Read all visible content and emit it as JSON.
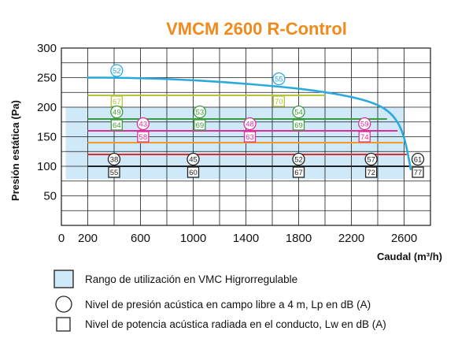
{
  "chart_data": {
    "type": "line",
    "title": "VMCM 2600 R-Control",
    "xlabel": "Caudal (m³/h)",
    "ylabel": "Presión estática (Pa)",
    "xlim": [
      0,
      2800
    ],
    "ylim": [
      0,
      300
    ],
    "x_ticks": [
      0,
      200,
      600,
      1000,
      1400,
      1800,
      2200,
      2600
    ],
    "y_ticks": [
      50,
      100,
      150,
      200,
      250,
      300
    ],
    "grid": true,
    "utilization_range": {
      "y_min": 78,
      "y_max": 200,
      "x_min": 200,
      "x_max": 2600
    },
    "curve": {
      "color": "#2aa9df",
      "points": [
        [
          200,
          250
        ],
        [
          400,
          250
        ],
        [
          800,
          248
        ],
        [
          1200,
          243
        ],
        [
          1600,
          236
        ],
        [
          1900,
          229
        ],
        [
          2200,
          218
        ],
        [
          2400,
          205
        ],
        [
          2500,
          190
        ],
        [
          2560,
          172
        ],
        [
          2600,
          150
        ],
        [
          2630,
          120
        ],
        [
          2650,
          95
        ]
      ]
    },
    "lines": [
      {
        "y": 220,
        "x_end": 2000,
        "color": "#b4c43c",
        "markers": [
          {
            "x": 420,
            "circle": null,
            "square": "67"
          },
          {
            "x": 1650,
            "circle": null,
            "square": "70"
          }
        ]
      },
      {
        "y": 180,
        "x_end": 2470,
        "color": "#3c9c3c",
        "markers": [
          {
            "x": 420,
            "circle": "49",
            "square": "64"
          },
          {
            "x": 1050,
            "circle": "53",
            "square": "69"
          },
          {
            "x": 1800,
            "circle": "54",
            "square": "69"
          }
        ]
      },
      {
        "y": 160,
        "x_end": 2550,
        "color": "#de2e9a",
        "markers": [
          {
            "x": 620,
            "circle": "43",
            "square": "58"
          },
          {
            "x": 1430,
            "circle": "48",
            "square": "63"
          },
          {
            "x": 2300,
            "circle": "59",
            "square": "74"
          }
        ]
      },
      {
        "y": 140,
        "x_end": 2590,
        "color": "#f39a22",
        "markers": []
      },
      {
        "y": 120,
        "x_end": 2620,
        "color": "#e22b2b",
        "markers": []
      },
      {
        "y": 100,
        "x_end": 2650,
        "color": "#222222",
        "markers": [
          {
            "x": 400,
            "circle": "38",
            "square": "55"
          },
          {
            "x": 1000,
            "circle": "45",
            "square": "60"
          },
          {
            "x": 1800,
            "circle": "52",
            "square": "67"
          },
          {
            "x": 2350,
            "circle": "57",
            "square": "72"
          },
          {
            "x": 2820,
            "circle": "61",
            "square": "77"
          }
        ]
      }
    ],
    "curve_markers": [
      {
        "x": 420,
        "y": 250,
        "circle": "52",
        "square": null
      },
      {
        "x": 1650,
        "y": 236,
        "circle": "55",
        "square": null
      }
    ]
  },
  "legend": {
    "range_label": "Rango de utilización en VMC Higrorregulable",
    "circle_label": "Nivel de presión acústica en campo libre a 4 m, Lp en dB (A)",
    "square_label": "Nivel de potencia acústica radiada en el conducto, Lw en dB (A)"
  },
  "colors": {
    "title": "#f08a1c",
    "range_fill": "#cfe9f8",
    "range_stroke": "#1a1a1a"
  }
}
